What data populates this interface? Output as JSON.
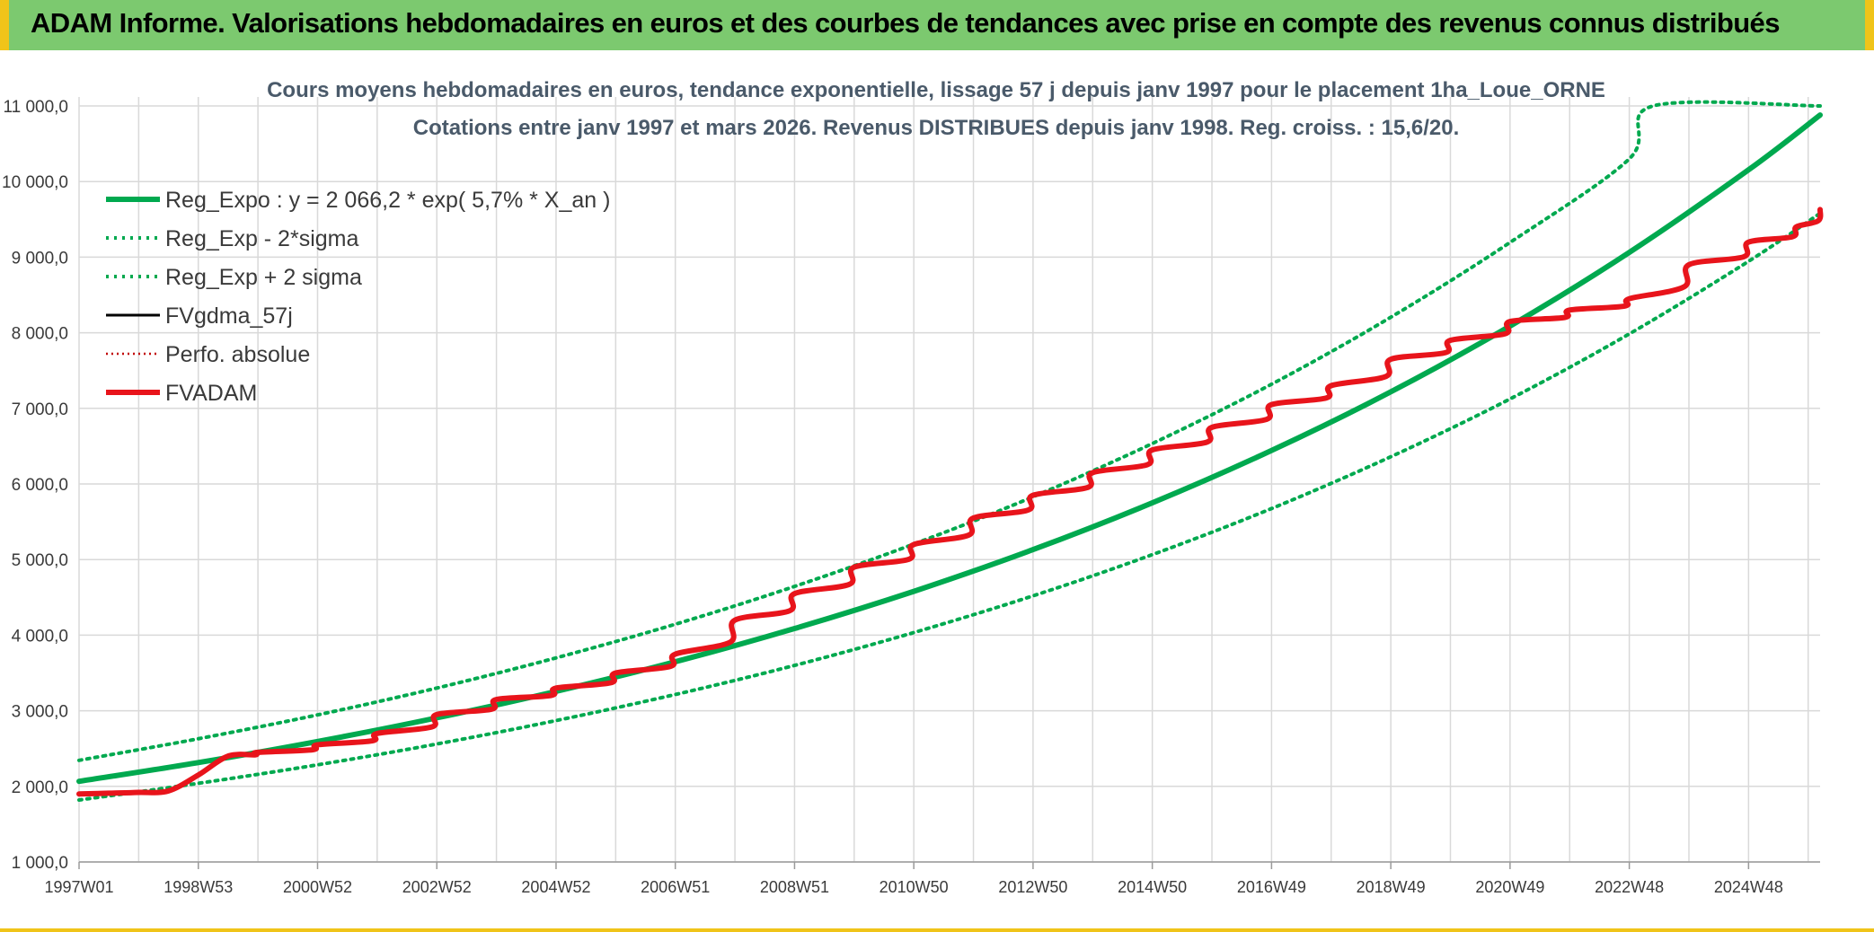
{
  "banner": {
    "title": "ADAM Informe. Valorisations hebdomadaires en euros et des courbes de tendances avec prise en compte des revenus connus distribués"
  },
  "colors": {
    "banner_bg": "#7cc96f",
    "banner_border": "#f0c419",
    "trend_green": "#00a94f",
    "fvadam_red": "#e8141b",
    "perfo_red": "#c00000",
    "fvgdma_black": "#000000",
    "grid": "#d9d9d9"
  },
  "chart_data": {
    "type": "line",
    "title": "Cours moyens hebdomadaires en euros, tendance exponentielle, lissage 57 j depuis janv 1997 pour le placement 1ha_Loue_ORNE",
    "subtitle": "Cotations entre janv 1997 et mars 2026. Revenus DISTRIBUES depuis janv 1998. Reg. croiss. : 15,6/20.",
    "xlabel": "",
    "ylabel": "",
    "ylim": [
      1000,
      11000
    ],
    "xlim": [
      1997.0,
      2026.2
    ],
    "y_ticks": [
      1000,
      2000,
      3000,
      4000,
      5000,
      6000,
      7000,
      8000,
      9000,
      10000,
      11000
    ],
    "y_tick_labels": [
      "1 000,0",
      "2 000,0",
      "3 000,0",
      "4 000,0",
      "5 000,0",
      "6 000,0",
      "7 000,0",
      "8 000,0",
      "9 000,0",
      "10 000,0",
      "11 000,0"
    ],
    "x_ticks": [
      1997.0,
      1999.0,
      2001.0,
      2003.0,
      2005.0,
      2007.0,
      2009.0,
      2011.0,
      2013.0,
      2015.0,
      2017.0,
      2019.0,
      2021.0,
      2023.0,
      2025.0
    ],
    "x_tick_labels": [
      "1997W01",
      "1998W53",
      "2000W52",
      "2002W52",
      "2004W52",
      "2006W51",
      "2008W51",
      "2010W50",
      "2012W50",
      "2014W50",
      "2016W49",
      "2018W49",
      "2020W49",
      "2022W48",
      "2024W48"
    ],
    "grid": true,
    "legend_position": "top-left",
    "series": [
      {
        "name": "Reg_Expo : y = 2 066,2 * exp( 5,7% *  X_an )",
        "style": "solid-thick",
        "color": "#00a94f",
        "x": [
          1997,
          1999,
          2001,
          2003,
          2005,
          2007,
          2009,
          2011,
          2013,
          2015,
          2017,
          2019,
          2021,
          2023,
          2025,
          2026.2
        ],
        "values": [
          2066,
          2315,
          2594,
          2906,
          3256,
          3648,
          4088,
          4580,
          5132,
          5750,
          6443,
          7219,
          8089,
          9063,
          10155,
          10880
        ]
      },
      {
        "name": "Reg_Exp - 2*sigma",
        "style": "dotted",
        "color": "#00a94f",
        "x": [
          1997,
          1999,
          2001,
          2003,
          2005,
          2007,
          2009,
          2011,
          2013,
          2015,
          2017,
          2019,
          2021,
          2023,
          2025,
          2026.2
        ],
        "values": [
          1820,
          2040,
          2285,
          2560,
          2870,
          3215,
          3600,
          4035,
          4520,
          5065,
          5675,
          6360,
          7125,
          7985,
          8945,
          9580
        ]
      },
      {
        "name": "Reg_Exp + 2 sigma",
        "style": "dotted",
        "color": "#00a94f",
        "x": [
          1997,
          1999,
          2001,
          2003,
          2005,
          2007,
          2009,
          2011,
          2013,
          2015,
          2017,
          2019,
          2021,
          2023,
          2023.4,
          2026.2
        ],
        "values": [
          2345,
          2630,
          2945,
          3300,
          3700,
          4145,
          4645,
          5205,
          5830,
          6535,
          7320,
          8205,
          9195,
          10300,
          11000,
          11000
        ]
      },
      {
        "name": "FVgdma_57j",
        "style": "solid",
        "color": "#000000",
        "x": [
          1997.0,
          1997.5,
          1998.0,
          1998.5,
          1999.0,
          1999.5,
          2000.0,
          2001.0,
          2002.0,
          2003.0,
          2004.0,
          2005.0,
          2006.0,
          2007.0,
          2008.0,
          2009.0,
          2010.0,
          2011.0,
          2012.0,
          2013.0,
          2014.0,
          2015.0,
          2016.0,
          2017.0,
          2018.0,
          2019.0,
          2020.0,
          2021.0,
          2022.0,
          2023.0,
          2024.0,
          2025.0,
          2025.8,
          2026.2
        ],
        "values": [
          1900,
          1910,
          1920,
          1940,
          2150,
          2400,
          2450,
          2550,
          2700,
          2950,
          3150,
          3300,
          3500,
          3750,
          4200,
          4550,
          4900,
          5200,
          5550,
          5850,
          6150,
          6450,
          6750,
          7050,
          7300,
          7650,
          7900,
          8150,
          8300,
          8450,
          8900,
          9200,
          9400,
          9630
        ]
      },
      {
        "name": "Perfo. absolue",
        "style": "dotted",
        "color": "#c00000",
        "x": [
          1997.0,
          1997.5,
          1998.0,
          1998.5,
          1999.0,
          1999.5,
          2000.0,
          2001.0,
          2002.0,
          2003.0,
          2004.0,
          2005.0,
          2006.0,
          2007.0,
          2008.0,
          2009.0,
          2010.0,
          2011.0,
          2012.0,
          2013.0,
          2014.0,
          2015.0,
          2016.0,
          2017.0,
          2018.0,
          2019.0,
          2020.0,
          2021.0,
          2022.0,
          2023.0,
          2024.0,
          2025.0,
          2025.8,
          2026.2
        ],
        "values": [
          1900,
          1910,
          1920,
          1940,
          2150,
          2400,
          2450,
          2550,
          2700,
          2950,
          3150,
          3300,
          3500,
          3750,
          4200,
          4550,
          4900,
          5200,
          5550,
          5850,
          6150,
          6450,
          6750,
          7050,
          7300,
          7650,
          7900,
          8150,
          8300,
          8450,
          8900,
          9200,
          9400,
          9630
        ]
      },
      {
        "name": "FVADAM",
        "style": "solid-thick",
        "color": "#e8141b",
        "x": [
          1997.0,
          1997.5,
          1998.0,
          1998.5,
          1999.0,
          1999.5,
          2000.0,
          2001.0,
          2002.0,
          2003.0,
          2004.0,
          2005.0,
          2006.0,
          2007.0,
          2008.0,
          2009.0,
          2010.0,
          2011.0,
          2012.0,
          2013.0,
          2014.0,
          2015.0,
          2016.0,
          2017.0,
          2018.0,
          2019.0,
          2020.0,
          2021.0,
          2022.0,
          2023.0,
          2024.0,
          2025.0,
          2025.8,
          2026.2
        ],
        "values": [
          1900,
          1910,
          1920,
          1940,
          2150,
          2400,
          2450,
          2550,
          2700,
          2950,
          3150,
          3300,
          3500,
          3750,
          4200,
          4550,
          4900,
          5200,
          5550,
          5850,
          6150,
          6450,
          6750,
          7050,
          7300,
          7650,
          7900,
          8150,
          8300,
          8450,
          8900,
          9200,
          9400,
          9630
        ]
      }
    ]
  }
}
